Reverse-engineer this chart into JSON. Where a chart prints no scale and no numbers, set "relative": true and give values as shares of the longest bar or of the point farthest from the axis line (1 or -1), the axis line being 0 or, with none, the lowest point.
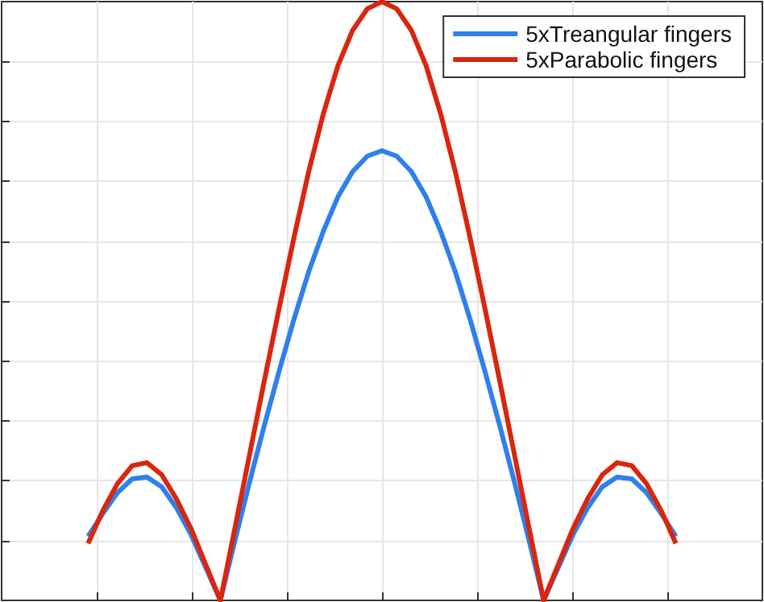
{
  "chart_data": {
    "type": "line",
    "relative": true,
    "grid": true,
    "legend": "top right",
    "marker": "none",
    "line_style": "solid",
    "categories": [
      null,
      null,
      null,
      null,
      null,
      null,
      null,
      null,
      null,
      null,
      null,
      null,
      null,
      null,
      null,
      null,
      null,
      null,
      null,
      null,
      null,
      null,
      null,
      null,
      null,
      null,
      null,
      null,
      null,
      null,
      null,
      null,
      null,
      null,
      null,
      null,
      null,
      null,
      null,
      null,
      null
    ],
    "series": [
      {
        "name": "5xTreangular fingers",
        "color": "#2f80ec",
        "values": [
          0.107,
          0.145,
          0.18,
          0.203,
          0.206,
          0.19,
          0.155,
          0.11,
          0.055,
          0,
          0.101,
          0.199,
          0.293,
          0.383,
          0.469,
          0.548,
          0.616,
          0.674,
          0.716,
          0.742,
          0.751,
          0.742,
          0.716,
          0.674,
          0.616,
          0.548,
          0.469,
          0.383,
          0.293,
          0.199,
          0.101,
          0,
          0.055,
          0.11,
          0.155,
          0.19,
          0.206,
          0.203,
          0.18,
          0.145,
          0.107
        ]
      },
      {
        "name": "5xParabolic fingers",
        "color": "#d9260f",
        "values": [
          0.095,
          0.15,
          0.195,
          0.225,
          0.23,
          0.21,
          0.17,
          0.12,
          0.06,
          0,
          0.122,
          0.245,
          0.368,
          0.488,
          0.605,
          0.715,
          0.812,
          0.893,
          0.952,
          0.988,
          1,
          0.988,
          0.952,
          0.893,
          0.812,
          0.715,
          0.605,
          0.488,
          0.368,
          0.245,
          0.122,
          0,
          0.06,
          0.12,
          0.17,
          0.21,
          0.23,
          0.225,
          0.195,
          0.15,
          0.095
        ]
      }
    ]
  }
}
